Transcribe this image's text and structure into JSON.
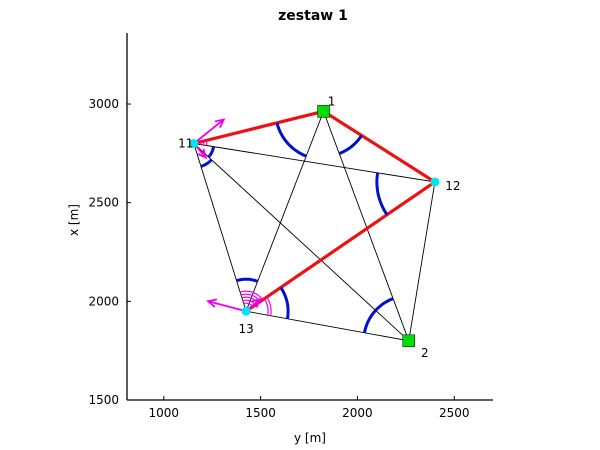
{
  "chart_data": {
    "type": "network",
    "title": "zestaw 1",
    "xlabel": "y [m]",
    "ylabel": "x [m]",
    "xlim": [
      810,
      2700
    ],
    "ylim": [
      1500,
      3360
    ],
    "xticks": [
      "1000",
      "1500",
      "2000",
      "2500"
    ],
    "yticks": [
      "1500",
      "2000",
      "2500",
      "3000"
    ],
    "colors": {
      "control_point": "#00dd00",
      "new_point": "#00e5ee",
      "red_line": "#ee1111",
      "angle_arc": "#0011cc",
      "magenta": "#ee00ee",
      "line": "#000000"
    },
    "points": [
      {
        "label": "1",
        "y": 1825,
        "x": 2963,
        "kind": "control"
      },
      {
        "label": "2",
        "y": 2265,
        "x": 1800,
        "kind": "control"
      },
      {
        "label": "11",
        "y": 1155,
        "x": 2800,
        "kind": "new"
      },
      {
        "label": "12",
        "y": 2400,
        "x": 2605,
        "kind": "new"
      },
      {
        "label": "13",
        "y": 1425,
        "x": 1950,
        "kind": "new"
      }
    ],
    "lines": [
      [
        "11",
        "1"
      ],
      [
        "1",
        "12"
      ],
      [
        "12",
        "13"
      ],
      [
        "11",
        "12"
      ],
      [
        "11",
        "13"
      ],
      [
        "11",
        "2"
      ],
      [
        "1",
        "13"
      ],
      [
        "1",
        "2"
      ],
      [
        "12",
        "2"
      ],
      [
        "13",
        "2"
      ]
    ],
    "highlighted_lines": [
      [
        "11",
        "1"
      ],
      [
        "1",
        "12"
      ],
      [
        "12",
        "13"
      ]
    ]
  }
}
